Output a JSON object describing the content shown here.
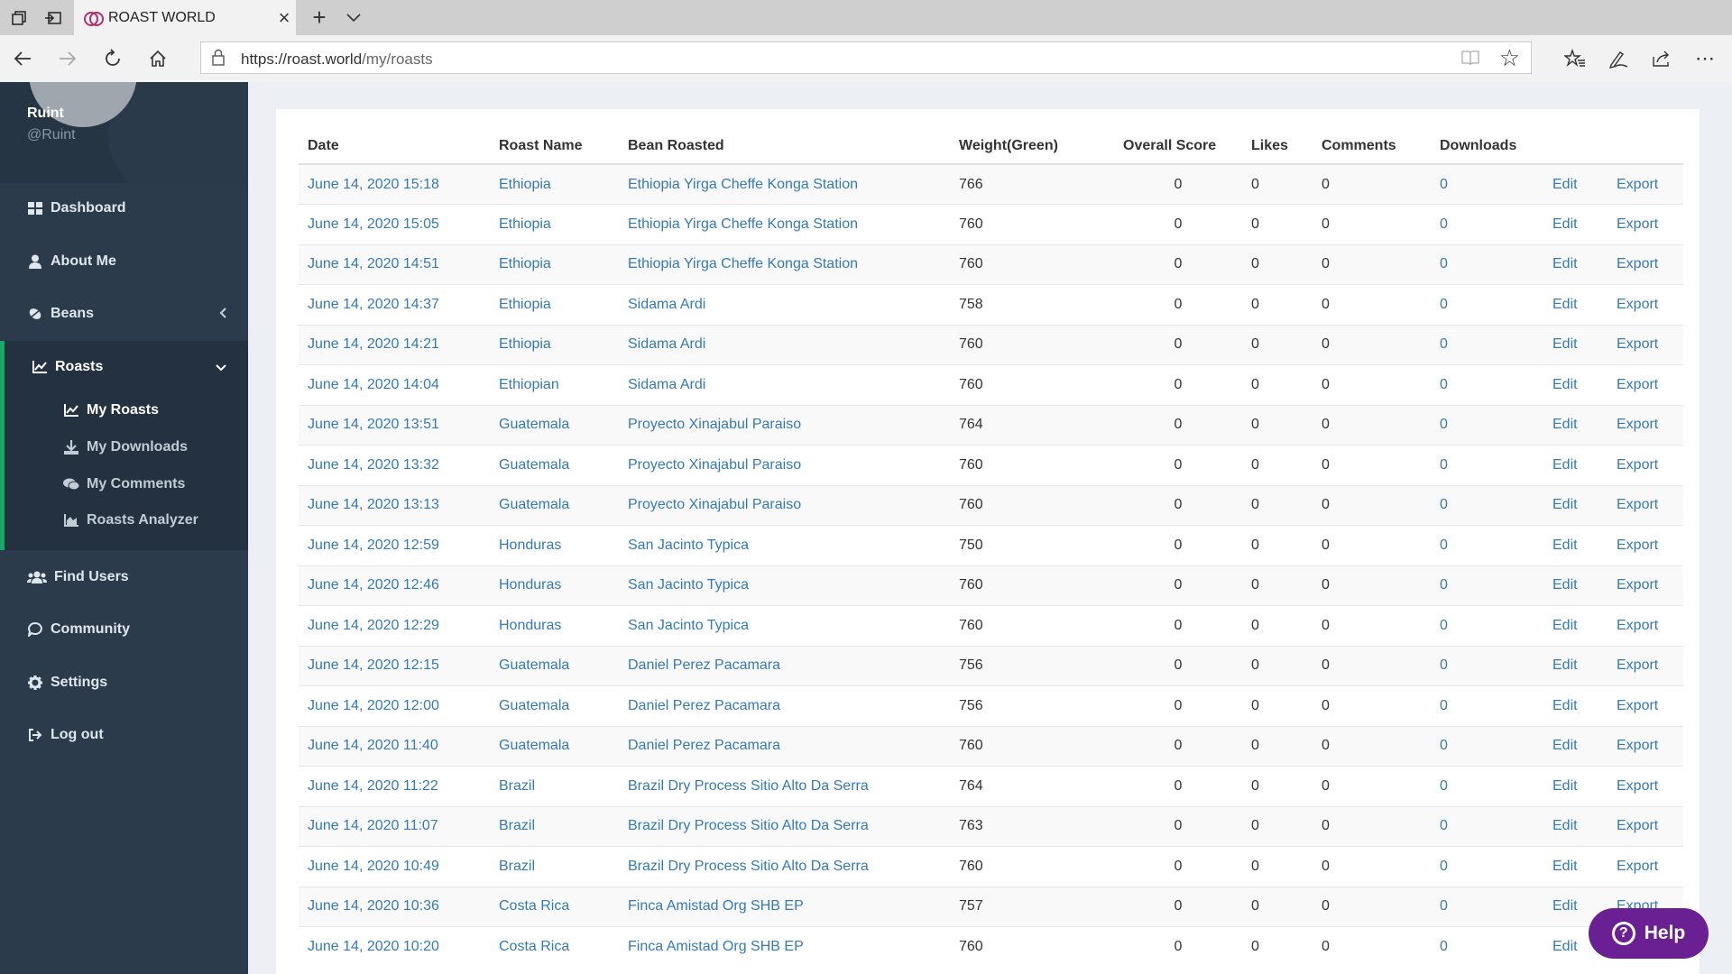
{
  "browser": {
    "tab_title": "ROAST WORLD",
    "url_host": "https://roast.world",
    "url_path": "/my/roasts"
  },
  "sidebar": {
    "user_name": "Ruint",
    "user_handle": "@Ruint",
    "menu": {
      "dashboard": "Dashboard",
      "about": "About Me",
      "beans": "Beans",
      "roasts": "Roasts",
      "find_users": "Find Users",
      "community": "Community",
      "settings": "Settings",
      "logout": "Log out"
    },
    "submenu": {
      "my_roasts": "My Roasts",
      "my_downloads": "My Downloads",
      "my_comments": "My Comments",
      "analyzer": "Roasts Analyzer"
    },
    "accent_color": "#1aa76a"
  },
  "table": {
    "headers": [
      "Date",
      "Roast Name",
      "Bean Roasted",
      "Weight(Green)",
      "Overall Score",
      "Likes",
      "Comments",
      "Downloads"
    ],
    "edit_label": "Edit",
    "export_label": "Export",
    "rows": [
      {
        "date": "June 14, 2020 15:18",
        "name": "Ethiopia",
        "bean": "Ethiopia Yirga Cheffe Konga Station",
        "weight": "766",
        "score": "0",
        "likes": "0",
        "comments": "0",
        "downloads": "0"
      },
      {
        "date": "June 14, 2020 15:05",
        "name": "Ethiopia",
        "bean": "Ethiopia Yirga Cheffe Konga Station",
        "weight": "760",
        "score": "0",
        "likes": "0",
        "comments": "0",
        "downloads": "0"
      },
      {
        "date": "June 14, 2020 14:51",
        "name": "Ethiopia",
        "bean": "Ethiopia Yirga Cheffe Konga Station",
        "weight": "760",
        "score": "0",
        "likes": "0",
        "comments": "0",
        "downloads": "0"
      },
      {
        "date": "June 14, 2020 14:37",
        "name": "Ethiopia",
        "bean": "Sidama Ardi",
        "weight": "758",
        "score": "0",
        "likes": "0",
        "comments": "0",
        "downloads": "0"
      },
      {
        "date": "June 14, 2020 14:21",
        "name": "Ethiopia",
        "bean": "Sidama Ardi",
        "weight": "760",
        "score": "0",
        "likes": "0",
        "comments": "0",
        "downloads": "0"
      },
      {
        "date": "June 14, 2020 14:04",
        "name": "Ethiopian",
        "bean": "Sidama Ardi",
        "weight": "760",
        "score": "0",
        "likes": "0",
        "comments": "0",
        "downloads": "0"
      },
      {
        "date": "June 14, 2020 13:51",
        "name": "Guatemala",
        "bean": "Proyecto Xinajabul Paraiso",
        "weight": "764",
        "score": "0",
        "likes": "0",
        "comments": "0",
        "downloads": "0"
      },
      {
        "date": "June 14, 2020 13:32",
        "name": "Guatemala",
        "bean": "Proyecto Xinajabul Paraiso",
        "weight": "760",
        "score": "0",
        "likes": "0",
        "comments": "0",
        "downloads": "0"
      },
      {
        "date": "June 14, 2020 13:13",
        "name": "Guatemala",
        "bean": "Proyecto Xinajabul Paraiso",
        "weight": "760",
        "score": "0",
        "likes": "0",
        "comments": "0",
        "downloads": "0"
      },
      {
        "date": "June 14, 2020 12:59",
        "name": "Honduras",
        "bean": "San Jacinto Typica",
        "weight": "750",
        "score": "0",
        "likes": "0",
        "comments": "0",
        "downloads": "0"
      },
      {
        "date": "June 14, 2020 12:46",
        "name": "Honduras",
        "bean": "San Jacinto Typica",
        "weight": "760",
        "score": "0",
        "likes": "0",
        "comments": "0",
        "downloads": "0"
      },
      {
        "date": "June 14, 2020 12:29",
        "name": "Honduras",
        "bean": "San Jacinto Typica",
        "weight": "760",
        "score": "0",
        "likes": "0",
        "comments": "0",
        "downloads": "0"
      },
      {
        "date": "June 14, 2020 12:15",
        "name": "Guatemala",
        "bean": "Daniel Perez Pacamara",
        "weight": "756",
        "score": "0",
        "likes": "0",
        "comments": "0",
        "downloads": "0"
      },
      {
        "date": "June 14, 2020 12:00",
        "name": "Guatemala",
        "bean": "Daniel Perez Pacamara",
        "weight": "756",
        "score": "0",
        "likes": "0",
        "comments": "0",
        "downloads": "0"
      },
      {
        "date": "June 14, 2020 11:40",
        "name": "Guatemala",
        "bean": "Daniel Perez Pacamara",
        "weight": "760",
        "score": "0",
        "likes": "0",
        "comments": "0",
        "downloads": "0"
      },
      {
        "date": "June 14, 2020 11:22",
        "name": "Brazil",
        "bean": "Brazil Dry Process Sitio Alto Da Serra",
        "weight": "764",
        "score": "0",
        "likes": "0",
        "comments": "0",
        "downloads": "0"
      },
      {
        "date": "June 14, 2020 11:07",
        "name": "Brazil",
        "bean": "Brazil Dry Process Sitio Alto Da Serra",
        "weight": "763",
        "score": "0",
        "likes": "0",
        "comments": "0",
        "downloads": "0"
      },
      {
        "date": "June 14, 2020 10:49",
        "name": "Brazil",
        "bean": "Brazil Dry Process Sitio Alto Da Serra",
        "weight": "760",
        "score": "0",
        "likes": "0",
        "comments": "0",
        "downloads": "0"
      },
      {
        "date": "June 14, 2020 10:36",
        "name": "Costa Rica",
        "bean": "Finca Amistad Org SHB EP",
        "weight": "757",
        "score": "0",
        "likes": "0",
        "comments": "0",
        "downloads": "0"
      },
      {
        "date": "June 14, 2020 10:20",
        "name": "Costa Rica",
        "bean": "Finca Amistad Org SHB EP",
        "weight": "760",
        "score": "0",
        "likes": "0",
        "comments": "0",
        "downloads": "0"
      }
    ]
  },
  "help": {
    "label": "Help",
    "color": "#6a1f93"
  }
}
